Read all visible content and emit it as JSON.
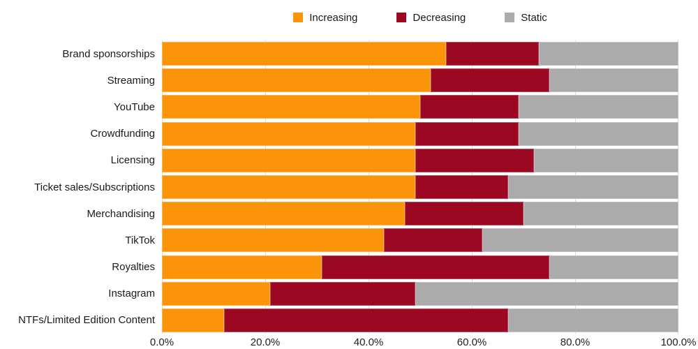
{
  "chart_data": {
    "type": "bar",
    "stacked": true,
    "orientation": "horizontal",
    "unit": "percent",
    "title": "",
    "xlabel": "",
    "ylabel": "",
    "xlim": [
      0,
      100
    ],
    "x_ticks": [
      "0.0%",
      "20.0%",
      "40.0%",
      "60.0%",
      "80.0%",
      "100.0%"
    ],
    "legend_position": "top-center",
    "grid": "vertical",
    "gridline_color": "#D9D9D9",
    "background_color": "#FFFFFF",
    "categories": [
      "Brand sponsorships",
      "Streaming",
      "YouTube",
      "Crowdfunding",
      "Licensing",
      "Ticket sales/Subscriptions",
      "Merchandising",
      "TikTok",
      "Royalties",
      "Instagram",
      "NTFs/Limited Edition Content"
    ],
    "series": [
      {
        "name": "Increasing",
        "color": "#FB9409",
        "values": [
          55,
          52,
          50,
          49,
          49,
          49,
          47,
          43,
          31,
          21,
          12
        ]
      },
      {
        "name": "Decreasing",
        "color": "#9C0821",
        "values": [
          18,
          23,
          19,
          20,
          23,
          18,
          23,
          19,
          44,
          28,
          55
        ]
      },
      {
        "name": "Static",
        "color": "#ABABAB",
        "values": [
          27,
          25,
          31,
          31,
          28,
          33,
          30,
          38,
          25,
          51,
          33
        ]
      }
    ]
  }
}
